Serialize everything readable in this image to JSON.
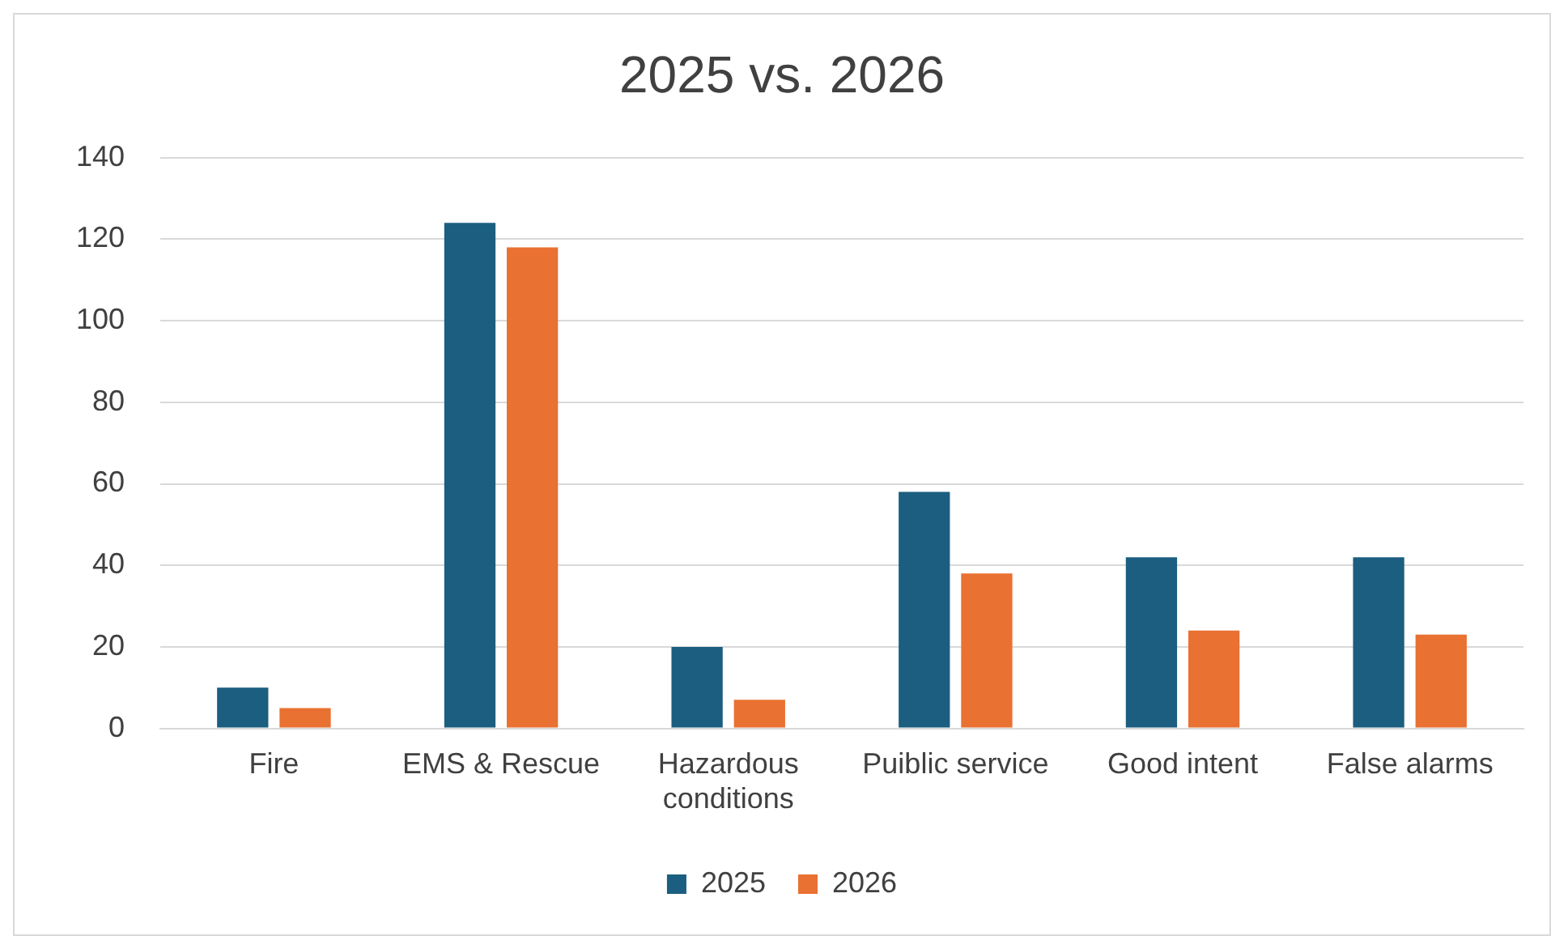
{
  "chart_data": {
    "type": "bar",
    "title": "2025 vs. 2026",
    "categories": [
      "Fire",
      "EMS & Rescue",
      "Hazardous conditions",
      "Puiblic service",
      "Good intent",
      "False alarms"
    ],
    "series": [
      {
        "name": "2025",
        "color": "#1b5e80",
        "values": [
          10,
          124,
          20,
          58,
          42,
          42
        ]
      },
      {
        "name": "2026",
        "color": "#e97132",
        "values": [
          5,
          118,
          7,
          38,
          24,
          23
        ]
      }
    ],
    "ylim": [
      0,
      140
    ],
    "yticks": [
      0,
      20,
      40,
      60,
      80,
      100,
      120,
      140
    ],
    "grid": "y",
    "legend": "bottom"
  }
}
